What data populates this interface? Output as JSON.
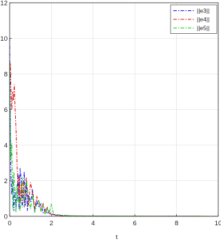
{
  "chart_data": {
    "type": "line",
    "xlabel": "t",
    "ylabel": "",
    "xlim": [
      0,
      10
    ],
    "ylim": [
      0,
      12
    ],
    "xticks": [
      0,
      2,
      4,
      6,
      8,
      10
    ],
    "yticks": [
      0,
      2,
      4,
      6,
      8,
      10,
      12
    ],
    "grid": true,
    "legend_position": "top-right",
    "series": [
      {
        "name": "||e3||",
        "color": "#0000ff",
        "dash": "dash-dot",
        "x": [
          0,
          0.03,
          0.06,
          0.1,
          0.15,
          0.2,
          0.25,
          0.3,
          0.35,
          0.4,
          0.45,
          0.5,
          0.55,
          0.6,
          0.65,
          0.7,
          0.75,
          0.8,
          0.85,
          0.9,
          1.0,
          1.1,
          1.2,
          1.3,
          1.4,
          1.5,
          1.6,
          1.7,
          1.8,
          1.9,
          2.0,
          2.2,
          2.5,
          3.0,
          4.0,
          6.0,
          8.0,
          10.0
        ],
        "y": [
          10.0,
          5.5,
          2.2,
          1.2,
          2.1,
          0.3,
          1.6,
          0.5,
          1.0,
          2.4,
          0.4,
          2.7,
          2.1,
          0.5,
          1.4,
          2.5,
          0.6,
          1.9,
          0.3,
          1.2,
          0.8,
          1.5,
          0.3,
          0.9,
          0.5,
          0.7,
          0.2,
          0.4,
          0.15,
          0.3,
          0.12,
          0.08,
          0.04,
          0.02,
          0.01,
          0.005,
          0.003,
          0.002
        ]
      },
      {
        "name": "||e4||",
        "color": "#e00000",
        "dash": "dash-dot",
        "x": [
          0,
          0.03,
          0.06,
          0.1,
          0.14,
          0.18,
          0.22,
          0.26,
          0.3,
          0.34,
          0.38,
          0.42,
          0.46,
          0.5,
          0.55,
          0.6,
          0.65,
          0.7,
          0.75,
          0.8,
          0.9,
          1.0,
          1.1,
          1.2,
          1.3,
          1.4,
          1.5,
          1.6,
          1.7,
          1.8,
          1.9,
          2.0,
          2.2,
          2.5,
          3.0,
          4.0,
          6.0,
          8.0,
          10.0
        ],
        "y": [
          8.0,
          8.6,
          7.2,
          6.0,
          7.0,
          6.5,
          7.4,
          6.1,
          5.0,
          3.6,
          2.1,
          1.2,
          2.3,
          0.7,
          1.8,
          1.0,
          2.0,
          0.5,
          1.6,
          2.2,
          0.6,
          1.9,
          1.3,
          0.4,
          1.1,
          0.8,
          0.3,
          0.7,
          0.2,
          0.5,
          0.15,
          0.1,
          0.06,
          0.03,
          0.02,
          0.01,
          0.005,
          0.003,
          0.002
        ]
      },
      {
        "name": "||e5||",
        "color": "#00cc00",
        "dash": "dash-dot",
        "x": [
          0,
          0.03,
          0.06,
          0.1,
          0.15,
          0.2,
          0.25,
          0.3,
          0.35,
          0.4,
          0.45,
          0.5,
          0.6,
          0.7,
          0.8,
          0.9,
          1.0,
          1.1,
          1.2,
          1.3,
          1.4,
          1.5,
          1.6,
          1.7,
          1.8,
          1.9,
          2.0,
          2.1,
          2.2,
          2.5,
          3.0,
          4.0,
          6.0,
          8.0,
          10.0
        ],
        "y": [
          8.7,
          5.0,
          3.2,
          4.1,
          0.4,
          2.5,
          1.5,
          0.2,
          1.8,
          0.8,
          1.1,
          0.3,
          2.2,
          0.6,
          2.0,
          1.1,
          0.4,
          1.2,
          0.2,
          0.7,
          0.9,
          0.3,
          0.6,
          0.1,
          0.4,
          0.2,
          0.7,
          0.15,
          0.1,
          0.06,
          0.03,
          0.015,
          0.008,
          0.004,
          0.002
        ]
      }
    ]
  }
}
